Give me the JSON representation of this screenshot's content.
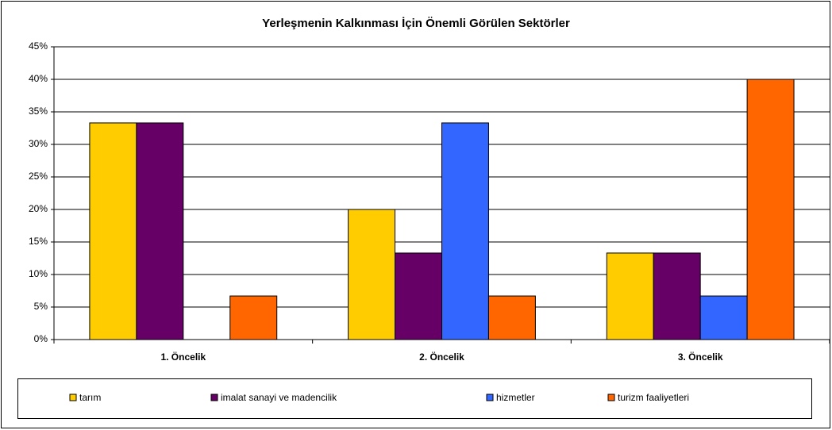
{
  "chart_data": {
    "type": "bar",
    "title": "Yerleşmenin Kalkınması İçin Önemli Görülen Sektörler",
    "categories": [
      "1. Öncelik",
      "2. Öncelik",
      "3. Öncelik"
    ],
    "series": [
      {
        "name": "tarım",
        "color": "#FFCC00",
        "values": [
          33.3,
          20,
          13.3
        ]
      },
      {
        "name": "imalat sanayi ve madencilik",
        "color": "#660066",
        "values": [
          33.3,
          13.3,
          13.3
        ]
      },
      {
        "name": "hizmetler",
        "color": "#3366FF",
        "values": [
          0,
          33.3,
          6.7
        ]
      },
      {
        "name": "turizm faaliyetleri",
        "color": "#FF6600",
        "values": [
          6.7,
          6.7,
          40
        ]
      }
    ],
    "ylim": [
      0,
      45
    ],
    "yticks": [
      {
        "value": 0,
        "label": "0%"
      },
      {
        "value": 5,
        "label": "5%"
      },
      {
        "value": 10,
        "label": "10%"
      },
      {
        "value": 15,
        "label": "15%"
      },
      {
        "value": 20,
        "label": "20%"
      },
      {
        "value": 25,
        "label": "25%"
      },
      {
        "value": 30,
        "label": "30%"
      },
      {
        "value": 35,
        "label": "35%"
      },
      {
        "value": 40,
        "label": "40%"
      },
      {
        "value": 45,
        "label": "45%"
      }
    ],
    "grid": true
  }
}
